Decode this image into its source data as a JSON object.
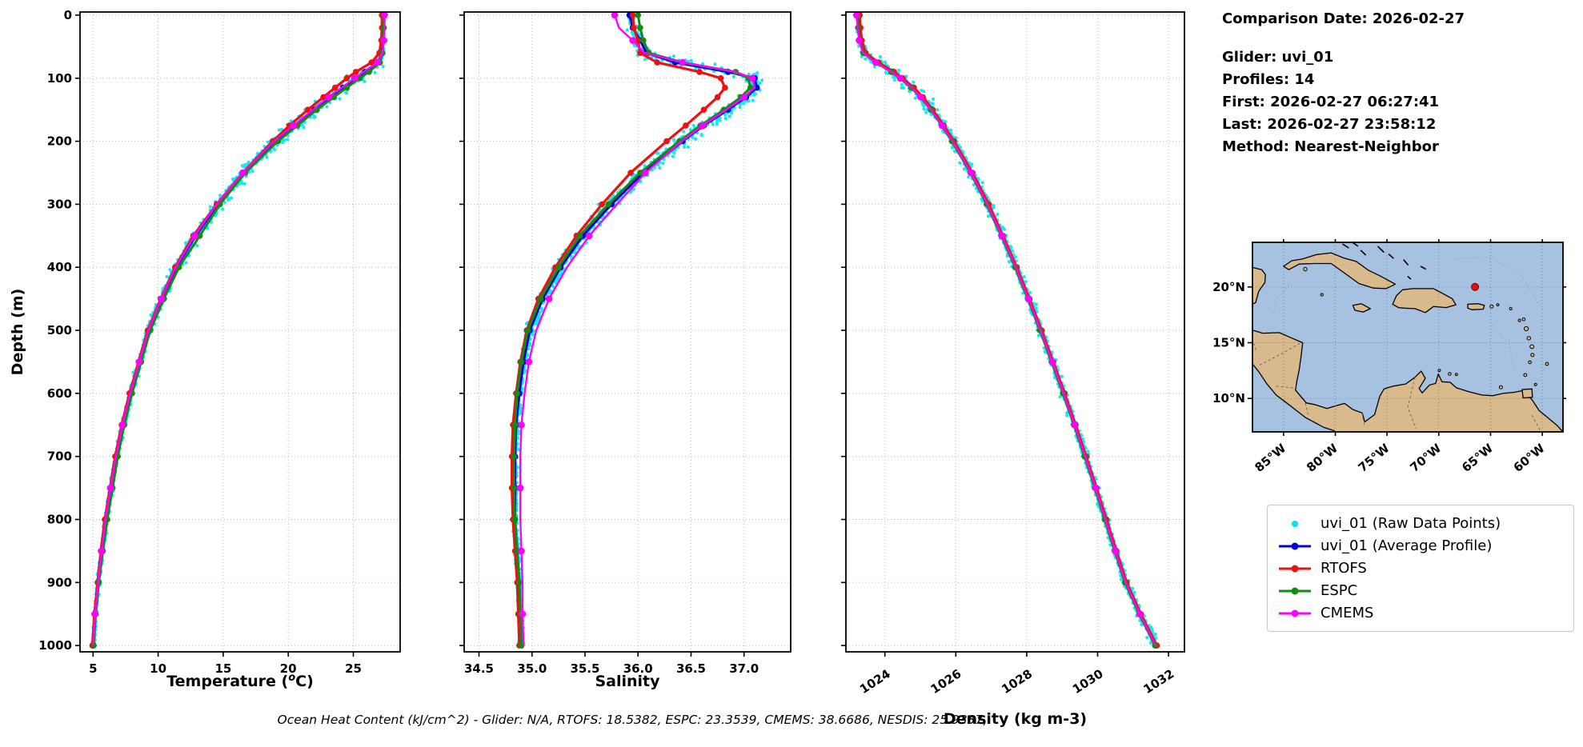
{
  "info": {
    "comparison_date": "Comparison Date: 2026-02-27",
    "glider": "Glider: uvi_01",
    "profiles": "Profiles: 14",
    "first": "First: 2026-02-27 06:27:41",
    "last": "Last: 2026-02-27 23:58:12",
    "method": "Method: Nearest-Neighbor"
  },
  "footer": {
    "ocean_heat_content": "Ocean Heat Content (kJ/cm^2) - Glider: N/A,  RTOFS: 18.5382,  ESPC: 23.3539,  CMEMS: 38.6686,  NESDIS: 25.9337,"
  },
  "legend": {
    "items": [
      {
        "id": "raw",
        "label": "uvi_01 (Raw Data Points)",
        "color": "#00E5EE",
        "marker": "dot"
      },
      {
        "id": "avg",
        "label": "uvi_01 (Average Profile)",
        "color": "#0000DC",
        "marker": "line"
      },
      {
        "id": "rtofs",
        "label": "RTOFS",
        "color": "#EE1111",
        "marker": "line"
      },
      {
        "id": "espc",
        "label": "ESPC",
        "color": "#118C11",
        "marker": "line"
      },
      {
        "id": "cmems",
        "label": "CMEMS",
        "color": "#FF00FF",
        "marker": "line"
      }
    ]
  },
  "profile_depths_m": [
    0,
    20,
    40,
    60,
    75,
    90,
    100,
    115,
    130,
    150,
    175,
    200,
    250,
    300,
    350,
    400,
    450,
    500,
    550,
    600,
    650,
    700,
    750,
    800,
    850,
    900,
    950,
    1000
  ],
  "chart_data": [
    {
      "name": "temperature",
      "type": "line",
      "xlabel": "Temperature (°C)",
      "ylabel": "Depth (m)",
      "xlim": [
        4.0,
        28.6
      ],
      "xticks": [
        5,
        10,
        15,
        20,
        25
      ],
      "xtick_labels": [
        "5",
        "10",
        "15",
        "20",
        "25"
      ],
      "ylim": [
        0,
        1000
      ],
      "yticks": [
        0,
        100,
        200,
        300,
        400,
        500,
        600,
        700,
        800,
        900,
        1000
      ],
      "ytick_labels": [
        "0",
        "100",
        "200",
        "300",
        "400",
        "500",
        "600",
        "700",
        "800",
        "900",
        "1000"
      ],
      "grid": true,
      "rotate_xticklabels": false,
      "raw": {
        "id": "raw",
        "name": "uvi_01 (Raw Data Points)",
        "color": "#00E5EE",
        "profiles": 14
      },
      "series": [
        {
          "id": "avg",
          "name": "uvi_01 (Average Profile)",
          "color": "#0000DC",
          "values": [
            27.3,
            27.3,
            27.3,
            27.2,
            26.9,
            25.9,
            25.2,
            24.2,
            23.2,
            22.0,
            20.5,
            19.0,
            16.6,
            14.6,
            12.9,
            11.4,
            10.3,
            9.3,
            8.6,
            7.9,
            7.3,
            6.8,
            6.4,
            6.0,
            5.7,
            5.4,
            5.2,
            5.0
          ]
        },
        {
          "id": "rtofs",
          "name": "RTOFS",
          "color": "#EE1111",
          "values": [
            27.2,
            27.2,
            27.15,
            27.0,
            26.4,
            25.2,
            24.5,
            23.6,
            22.7,
            21.5,
            20.1,
            18.8,
            16.5,
            14.5,
            12.7,
            11.3,
            10.2,
            9.2,
            8.5,
            7.8,
            7.2,
            6.7,
            6.3,
            5.9,
            5.6,
            5.35,
            5.1,
            4.95
          ]
        },
        {
          "id": "espc",
          "name": "ESPC",
          "color": "#118C11",
          "values": [
            27.35,
            27.35,
            27.3,
            27.25,
            27.05,
            26.2,
            25.5,
            24.5,
            23.5,
            22.2,
            20.7,
            19.2,
            16.7,
            14.75,
            13.2,
            11.6,
            10.45,
            9.4,
            8.7,
            8.0,
            7.4,
            6.9,
            6.5,
            6.1,
            5.75,
            5.45,
            5.2,
            5.05
          ]
        },
        {
          "id": "cmems",
          "name": "CMEMS",
          "color": "#FF00FF",
          "values": [
            27.4,
            27.4,
            27.35,
            27.25,
            26.85,
            25.8,
            25.1,
            24.1,
            23.1,
            21.9,
            20.4,
            18.9,
            16.5,
            14.5,
            12.8,
            11.35,
            10.25,
            9.25,
            8.55,
            7.85,
            7.25,
            6.75,
            6.35,
            5.95,
            5.65,
            5.4,
            5.15,
            5.0
          ]
        }
      ]
    },
    {
      "name": "salinity",
      "type": "line",
      "xlabel": "Salinity",
      "xlim": [
        34.36,
        37.44
      ],
      "xticks": [
        34.5,
        35.0,
        35.5,
        36.0,
        36.5,
        37.0
      ],
      "xtick_labels": [
        "34.5",
        "35.0",
        "35.5",
        "36.0",
        "36.5",
        "37.0"
      ],
      "ylim": [
        0,
        1000
      ],
      "yticks": [
        0,
        100,
        200,
        300,
        400,
        500,
        600,
        700,
        800,
        900,
        1000
      ],
      "grid": true,
      "rotate_xticklabels": false,
      "raw": {
        "id": "raw",
        "name": "uvi_01 (Raw Data Points)",
        "color": "#00E5EE",
        "profiles": 14
      },
      "series": [
        {
          "id": "avg",
          "name": "uvi_01 (Average Profile)",
          "color": "#0000DC",
          "values": [
            35.92,
            35.95,
            36.02,
            36.08,
            36.35,
            36.85,
            37.1,
            37.12,
            37.02,
            36.85,
            36.62,
            36.42,
            36.05,
            35.75,
            35.48,
            35.27,
            35.1,
            34.98,
            34.92,
            34.88,
            34.85,
            34.84,
            34.84,
            34.84,
            34.86,
            34.88,
            34.89,
            34.9
          ]
        },
        {
          "id": "rtofs",
          "name": "RTOFS",
          "color": "#EE1111",
          "values": [
            35.95,
            35.96,
            36.0,
            36.02,
            36.18,
            36.58,
            36.78,
            36.82,
            36.75,
            36.62,
            36.45,
            36.27,
            35.93,
            35.66,
            35.42,
            35.22,
            35.06,
            34.95,
            34.89,
            34.85,
            34.82,
            34.81,
            34.81,
            34.82,
            34.84,
            34.86,
            34.87,
            34.88
          ]
        },
        {
          "id": "espc",
          "name": "ESPC",
          "color": "#118C11",
          "values": [
            36.0,
            36.02,
            36.05,
            36.1,
            36.42,
            36.92,
            37.04,
            37.06,
            36.97,
            36.81,
            36.59,
            36.39,
            36.02,
            35.72,
            35.45,
            35.25,
            35.08,
            34.96,
            34.9,
            34.86,
            34.84,
            34.83,
            34.83,
            34.84,
            34.86,
            34.88,
            34.89,
            34.9
          ]
        },
        {
          "id": "cmems",
          "name": "CMEMS",
          "color": "#FF00FF",
          "values": [
            35.78,
            35.82,
            35.95,
            36.06,
            36.42,
            36.92,
            37.08,
            37.1,
            37.0,
            36.83,
            36.61,
            36.41,
            36.07,
            35.8,
            35.54,
            35.33,
            35.16,
            35.04,
            34.97,
            34.93,
            34.9,
            34.89,
            34.89,
            34.89,
            34.9,
            34.91,
            34.91,
            34.92
          ]
        }
      ]
    },
    {
      "name": "density",
      "type": "line",
      "xlabel": "Density (kg m-3)",
      "xlim": [
        1022.9,
        1032.45
      ],
      "xticks": [
        1024,
        1026,
        1028,
        1030,
        1032
      ],
      "xtick_labels": [
        "1024",
        "1026",
        "1028",
        "1030",
        "1032"
      ],
      "ylim": [
        0,
        1000
      ],
      "yticks": [
        0,
        100,
        200,
        300,
        400,
        500,
        600,
        700,
        800,
        900,
        1000
      ],
      "grid": true,
      "rotate_xticklabels": true,
      "raw": {
        "id": "raw",
        "name": "uvi_01 (Raw Data Points)",
        "color": "#00E5EE",
        "profiles": 14
      },
      "series": [
        {
          "id": "avg",
          "name": "uvi_01 (Average Profile)",
          "color": "#0000DC",
          "values": [
            1023.25,
            1023.27,
            1023.31,
            1023.42,
            1023.78,
            1024.22,
            1024.46,
            1024.78,
            1025.03,
            1025.32,
            1025.63,
            1025.92,
            1026.44,
            1026.9,
            1027.31,
            1027.7,
            1028.06,
            1028.4,
            1028.73,
            1029.05,
            1029.36,
            1029.66,
            1029.95,
            1030.23,
            1030.51,
            1030.8,
            1031.2,
            1031.65
          ]
        },
        {
          "id": "rtofs",
          "name": "RTOFS",
          "color": "#EE1111",
          "values": [
            1023.29,
            1023.31,
            1023.35,
            1023.46,
            1023.82,
            1024.26,
            1024.5,
            1024.82,
            1025.07,
            1025.35,
            1025.66,
            1025.95,
            1026.47,
            1026.93,
            1027.33,
            1027.72,
            1028.08,
            1028.42,
            1028.75,
            1029.07,
            1029.38,
            1029.68,
            1029.97,
            1030.25,
            1030.53,
            1030.82,
            1031.22,
            1031.67
          ]
        },
        {
          "id": "espc",
          "name": "ESPC",
          "color": "#118C11",
          "values": [
            1023.22,
            1023.24,
            1023.28,
            1023.39,
            1023.74,
            1024.18,
            1024.42,
            1024.74,
            1025.0,
            1025.29,
            1025.6,
            1025.89,
            1026.41,
            1026.87,
            1027.28,
            1027.67,
            1028.03,
            1028.37,
            1028.7,
            1029.02,
            1029.33,
            1029.63,
            1029.92,
            1030.2,
            1030.48,
            1030.77,
            1031.17,
            1031.62
          ]
        },
        {
          "id": "cmems",
          "name": "CMEMS",
          "color": "#FF00FF",
          "values": [
            1023.2,
            1023.23,
            1023.27,
            1023.38,
            1023.74,
            1024.19,
            1024.43,
            1024.76,
            1025.01,
            1025.3,
            1025.61,
            1025.91,
            1026.43,
            1026.89,
            1027.3,
            1027.69,
            1028.05,
            1028.39,
            1028.72,
            1029.04,
            1029.35,
            1029.65,
            1029.94,
            1030.22,
            1030.5,
            1030.79,
            1031.19,
            1031.64
          ]
        }
      ]
    }
  ],
  "map": {
    "lat_ticks": [
      {
        "label": "20°N",
        "value": 20
      },
      {
        "label": "15°N",
        "value": 15
      },
      {
        "label": "10°N",
        "value": 10
      }
    ],
    "lon_ticks": [
      {
        "label": "85°W",
        "value": -85
      },
      {
        "label": "80°W",
        "value": -80
      },
      {
        "label": "75°W",
        "value": -75
      },
      {
        "label": "70°W",
        "value": -70
      },
      {
        "label": "65°W",
        "value": -65
      },
      {
        "label": "60°W",
        "value": -60
      }
    ],
    "marker": {
      "lon": -66.5,
      "lat": 20.0,
      "color": "#E01010"
    },
    "ocean_color": "#A7C2E0",
    "land_color": "#D9BA8C"
  }
}
